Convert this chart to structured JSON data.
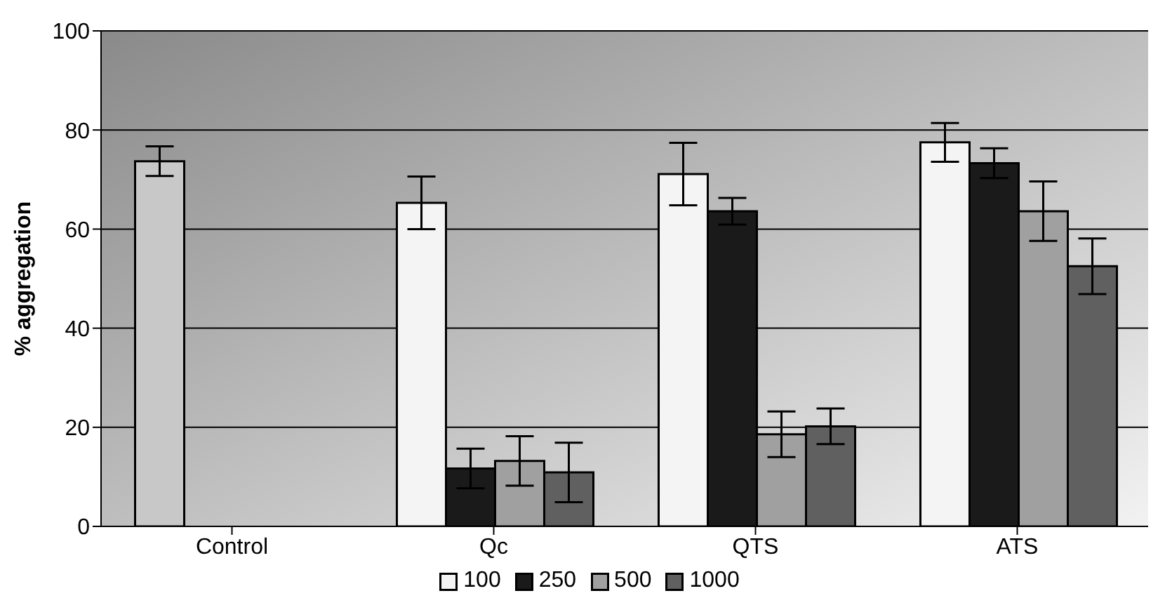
{
  "chart_data": {
    "type": "bar",
    "ylabel": "% aggregation",
    "categories": [
      "Control",
      "Qc",
      "QTS",
      "ATS"
    ],
    "series": [
      {
        "name": "100",
        "color": "#f4f4f4",
        "colors": [
          "#c8c8c8",
          "#f4f4f4",
          "#f4f4f4",
          "#f4f4f4"
        ],
        "values": [
          73.7,
          65.3,
          71.1,
          77.5
        ],
        "errors": [
          3,
          5.3,
          6.3,
          3.9
        ]
      },
      {
        "name": "250",
        "color": "#1a1a1a",
        "values": [
          null,
          11.7,
          63.6,
          73.3
        ],
        "errors": [
          null,
          4,
          2.7,
          3
        ]
      },
      {
        "name": "500",
        "color": "#a0a0a0",
        "values": [
          null,
          13.2,
          18.6,
          63.6
        ],
        "errors": [
          null,
          5,
          4.6,
          6
        ]
      },
      {
        "name": "1000",
        "color": "#606060",
        "values": [
          null,
          10.9,
          20.2,
          52.5
        ],
        "errors": [
          null,
          6,
          3.6,
          5.6
        ]
      }
    ],
    "ylim": [
      0,
      100
    ],
    "yticks": [
      0,
      20,
      40,
      60,
      80,
      100
    ],
    "grid": "y",
    "legend": "bottom"
  }
}
